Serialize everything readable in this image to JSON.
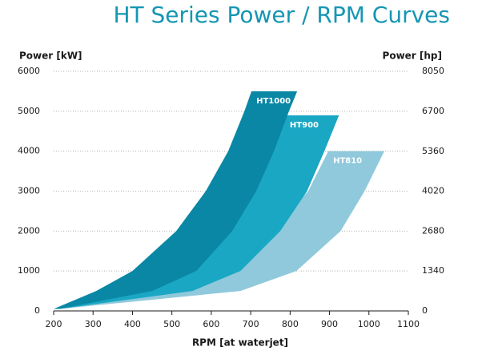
{
  "chart_data": {
    "type": "band",
    "title": "HT Series Power / RPM Curves",
    "y_label": "Power [kW]",
    "y2_label": "Power [hp]",
    "x_label": "RPM [at waterjet]",
    "xlim": [
      200,
      1100
    ],
    "xticks": [
      200,
      300,
      400,
      500,
      600,
      700,
      800,
      900,
      1000,
      1100
    ],
    "ylim": [
      0,
      6000
    ],
    "yticks": [
      0,
      1000,
      2000,
      3000,
      4000,
      5000,
      6000
    ],
    "y2lim": [
      0,
      8050
    ],
    "y2ticks": [
      0,
      1340,
      2680,
      4020,
      5360,
      6700,
      8050
    ],
    "grid": true,
    "series": [
      {
        "name": "HT810",
        "color": "#8fc9db",
        "values": [
          50,
          500,
          1000,
          2000,
          3000,
          4000
        ],
        "x_left": [
          200,
          430,
          602,
          755,
          846,
          897
        ],
        "x_right": [
          215,
          674,
          816,
          928,
          989,
          1039
        ]
      },
      {
        "name": "HT900",
        "color": "#19a7c4",
        "values": [
          50,
          500,
          1000,
          2000,
          3000,
          4000,
          4900
        ],
        "x_left": [
          200,
          358,
          460,
          596,
          684,
          745,
          787
        ],
        "x_right": [
          215,
          552,
          674,
          775,
          843,
          887,
          924
        ]
      },
      {
        "name": "HT1000",
        "color": "#0a87a5",
        "values": [
          50,
          500,
          1000,
          2000,
          3000,
          4000,
          5000,
          5500
        ],
        "x_left": [
          200,
          308,
          400,
          511,
          586,
          643,
          684,
          702
        ],
        "x_right": [
          215,
          450,
          562,
          653,
          714,
          759,
          797,
          818
        ]
      }
    ]
  }
}
